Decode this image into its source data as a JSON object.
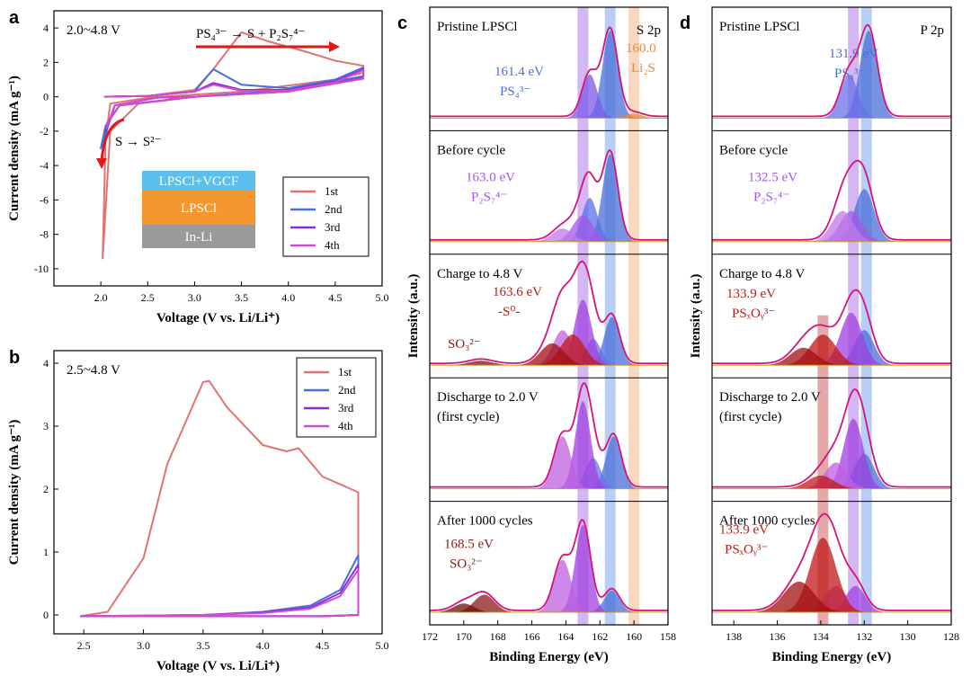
{
  "chart_data": [
    {
      "id": "a",
      "type": "line",
      "panel_label": "a",
      "range_text": "2.0~4.8 V",
      "reaction_top": "PS₄³⁻ → S + P₂S₇⁴⁻",
      "reaction_left": "S → S²⁻",
      "xlabel": "Voltage (V vs. Li/Li⁺)",
      "ylabel": "Current density (mA g⁻¹)",
      "xlim": [
        1.5,
        5.0
      ],
      "ylim": [
        -11,
        5
      ],
      "xticks": [
        "2.0",
        "2.5",
        "3.0",
        "3.5",
        "4.0",
        "4.5",
        "5.0"
      ],
      "yticks": [
        "-10",
        "-8",
        "-6",
        "-4",
        "-2",
        "0",
        "2",
        "4"
      ],
      "stack": [
        "LPSCl+VGCF",
        "LPSCl",
        "In-Li"
      ],
      "series": [
        {
          "name": "1st",
          "color": "#e27272",
          "x": [
            2.03,
            2.5,
            3.0,
            3.2,
            3.5,
            3.8,
            4.2,
            4.5,
            4.8,
            4.8,
            4.5,
            3.5,
            2.5,
            2.1,
            2.05,
            2.02,
            2.1,
            2.4,
            3.0
          ],
          "y": [
            0.0,
            0.05,
            0.4,
            1.6,
            3.75,
            3.2,
            2.6,
            2.1,
            1.8,
            1.4,
            1.0,
            0.3,
            -0.05,
            -0.4,
            -2.5,
            -9.4,
            -2.0,
            -0.4,
            0.0
          ]
        },
        {
          "name": "2nd",
          "color": "#4a6fd8",
          "x": [
            2.05,
            2.5,
            3.0,
            3.2,
            3.5,
            4.0,
            4.5,
            4.8,
            4.8,
            4.0,
            3.0,
            2.2,
            2.05,
            2.0,
            2.15,
            2.6,
            3.0
          ],
          "y": [
            0.0,
            0.05,
            0.3,
            1.6,
            0.7,
            0.5,
            1.0,
            1.7,
            1.2,
            0.4,
            0.0,
            -0.5,
            -1.7,
            -3.0,
            -0.5,
            -0.05,
            0.0
          ]
        },
        {
          "name": "3rd",
          "color": "#8a2be2",
          "x": [
            2.05,
            2.5,
            3.0,
            3.2,
            3.5,
            4.0,
            4.5,
            4.8,
            4.8,
            4.0,
            3.0,
            2.2,
            2.07,
            2.05,
            2.15,
            2.6,
            3.0
          ],
          "y": [
            0.0,
            0.05,
            0.3,
            0.8,
            0.4,
            0.4,
            0.9,
            1.6,
            1.1,
            0.3,
            0.0,
            -0.5,
            -1.5,
            -2.0,
            -0.5,
            -0.05,
            0.0
          ]
        },
        {
          "name": "4th",
          "color": "#d04ad0",
          "x": [
            2.05,
            2.5,
            3.0,
            3.2,
            3.5,
            4.0,
            4.5,
            4.8,
            4.8,
            4.0,
            3.0,
            2.2,
            2.08,
            2.06,
            2.15,
            2.6,
            3.0
          ],
          "y": [
            0.0,
            0.05,
            0.3,
            0.7,
            0.35,
            0.35,
            0.85,
            1.55,
            1.05,
            0.3,
            0.0,
            -0.5,
            -1.4,
            -1.8,
            -0.5,
            -0.05,
            0.0
          ]
        }
      ]
    },
    {
      "id": "b",
      "type": "line",
      "panel_label": "b",
      "range_text": "2.5~4.8 V",
      "xlabel": "Voltage (V vs. Li/Li⁺)",
      "ylabel": "Current density (mA g⁻¹)",
      "xlim": [
        2.25,
        5.0
      ],
      "ylim": [
        -0.3,
        4.2
      ],
      "xticks": [
        "2.5",
        "3.0",
        "3.5",
        "4.0",
        "4.5",
        "5.0"
      ],
      "yticks": [
        "0",
        "1",
        "2",
        "3",
        "4"
      ],
      "series": [
        {
          "name": "1st",
          "color": "#e27272",
          "x": [
            2.47,
            2.7,
            3.0,
            3.2,
            3.5,
            3.55,
            3.7,
            4.0,
            4.2,
            4.3,
            4.5,
            4.8,
            4.8,
            4.5,
            4.0,
            3.5,
            3.0,
            2.5
          ],
          "y": [
            -0.02,
            0.05,
            0.9,
            2.4,
            3.7,
            3.72,
            3.3,
            2.7,
            2.6,
            2.65,
            2.2,
            1.95,
            0.0,
            -0.02,
            -0.02,
            -0.02,
            -0.02,
            -0.02
          ]
        },
        {
          "name": "2nd",
          "color": "#4a6fd8",
          "x": [
            2.47,
            3.0,
            3.5,
            4.0,
            4.4,
            4.65,
            4.8,
            4.8,
            4.5,
            4.0,
            3.0,
            2.5
          ],
          "y": [
            -0.02,
            -0.01,
            0.0,
            0.05,
            0.15,
            0.4,
            0.95,
            0.0,
            -0.02,
            -0.02,
            -0.02,
            -0.02
          ]
        },
        {
          "name": "3rd",
          "color": "#8a2be2",
          "x": [
            2.47,
            3.0,
            3.5,
            4.0,
            4.4,
            4.65,
            4.8,
            4.8,
            4.5,
            4.0,
            3.0,
            2.5
          ],
          "y": [
            -0.02,
            -0.01,
            0.0,
            0.04,
            0.12,
            0.35,
            0.8,
            0.0,
            -0.02,
            -0.02,
            -0.02,
            -0.02
          ]
        },
        {
          "name": "4th",
          "color": "#d04ad0",
          "x": [
            2.47,
            3.0,
            3.5,
            4.0,
            4.4,
            4.65,
            4.8,
            4.8,
            4.5,
            4.0,
            3.0,
            2.5
          ],
          "y": [
            -0.02,
            -0.01,
            0.0,
            0.03,
            0.1,
            0.3,
            0.72,
            0.0,
            -0.02,
            -0.02,
            -0.02,
            -0.02
          ]
        }
      ]
    },
    {
      "id": "c",
      "type": "area",
      "panel_label": "c",
      "element_label": "S 2p",
      "xlabel": "Binding Energy (eV)",
      "ylabel": "Intensity (a.u.)",
      "xlim": [
        172,
        158
      ],
      "xticks": [
        "172",
        "170",
        "168",
        "166",
        "164",
        "162",
        "160",
        "158"
      ],
      "bands": [
        {
          "center": 163.0,
          "color": "#b07ae8"
        },
        {
          "center": 161.4,
          "color": "#7ea6ee"
        },
        {
          "center": 160.0,
          "color": "#f4b88a"
        }
      ],
      "rows": [
        {
          "title": "Pristine LPSCl",
          "annotations": [
            {
              "text": "161.4 eV",
              "sub": "PS₄³⁻",
              "color": "#4a6fd8"
            },
            {
              "text": "160.0",
              "sub": "Li₂S",
              "color": "#e88a3a"
            }
          ],
          "peaks": [
            {
              "c": 161.4,
              "a": 1.0,
              "w": 0.45,
              "color": "#4a6fd8"
            },
            {
              "c": 162.6,
              "a": 0.5,
              "w": 0.45,
              "color": "#7a5ae8"
            },
            {
              "c": 160.0,
              "a": 0.05,
              "w": 0.5,
              "color": "#e88a3a"
            }
          ]
        },
        {
          "title": "Before cycle",
          "annotations": [
            {
              "text": "163.0 eV",
              "sub": "P₂S₇⁴⁻",
              "color": "#a05ae8"
            }
          ],
          "peaks": [
            {
              "c": 161.4,
              "a": 1.0,
              "w": 0.45,
              "color": "#4a6fd8"
            },
            {
              "c": 162.6,
              "a": 0.5,
              "w": 0.45,
              "color": "#5a70e8"
            },
            {
              "c": 163.0,
              "a": 0.3,
              "w": 0.6,
              "color": "#a05ae8"
            },
            {
              "c": 164.2,
              "a": 0.15,
              "w": 0.6,
              "color": "#c07ae8"
            }
          ]
        },
        {
          "title": "Charge to 4.8 V",
          "annotations": [
            {
              "text": "163.6 eV",
              "sub": "-S⁰-",
              "color": "#b02020"
            },
            {
              "text": "SO₃²⁻",
              "sub": "",
              "color": "#8b1a1a"
            }
          ],
          "peaks": [
            {
              "c": 161.3,
              "a": 0.55,
              "w": 0.45,
              "color": "#4a6fd8"
            },
            {
              "c": 162.4,
              "a": 0.3,
              "w": 0.45,
              "color": "#6a70e8"
            },
            {
              "c": 163.0,
              "a": 0.75,
              "w": 0.5,
              "color": "#a040e0"
            },
            {
              "c": 164.2,
              "a": 0.4,
              "w": 0.55,
              "color": "#c060e0"
            },
            {
              "c": 163.6,
              "a": 0.35,
              "w": 0.7,
              "color": "#c01818"
            },
            {
              "c": 164.8,
              "a": 0.25,
              "w": 0.7,
              "color": "#a01010"
            },
            {
              "c": 169.0,
              "a": 0.05,
              "w": 0.7,
              "color": "#7a1010"
            }
          ]
        },
        {
          "title": "Discharge to 2.0 V",
          "title2": "(first cycle)",
          "annotations": [],
          "peaks": [
            {
              "c": 161.2,
              "a": 0.6,
              "w": 0.45,
              "color": "#4a6fd8"
            },
            {
              "c": 162.4,
              "a": 0.35,
              "w": 0.45,
              "color": "#6a70e8"
            },
            {
              "c": 163.0,
              "a": 1.0,
              "w": 0.45,
              "color": "#a040e0"
            },
            {
              "c": 164.2,
              "a": 0.6,
              "w": 0.5,
              "color": "#c060e0"
            }
          ]
        },
        {
          "title": "After 1000 cycles",
          "annotations": [
            {
              "text": "168.5 eV",
              "sub": "SO₃²⁻",
              "color": "#8b1a1a"
            }
          ],
          "peaks": [
            {
              "c": 161.3,
              "a": 0.25,
              "w": 0.45,
              "color": "#4a6fd8"
            },
            {
              "c": 163.0,
              "a": 1.0,
              "w": 0.45,
              "color": "#a040e0"
            },
            {
              "c": 164.2,
              "a": 0.6,
              "w": 0.5,
              "color": "#c060e0"
            },
            {
              "c": 168.8,
              "a": 0.2,
              "w": 0.6,
              "color": "#8b1a1a"
            },
            {
              "c": 170.0,
              "a": 0.1,
              "w": 0.6,
              "color": "#6a1010"
            }
          ]
        }
      ]
    },
    {
      "id": "d",
      "type": "area",
      "panel_label": "d",
      "element_label": "P 2p",
      "xlabel": "Binding Energy (eV)",
      "ylabel": "Intensity (a.u.)",
      "xlim": [
        139,
        128
      ],
      "xticks": [
        "138",
        "136",
        "134",
        "132",
        "130",
        "128"
      ],
      "bands": [
        {
          "center": 132.5,
          "color": "#b07ae8"
        },
        {
          "center": 131.9,
          "color": "#7ea6ee"
        },
        {
          "center": 133.9,
          "color": "#d06060"
        }
      ],
      "rows": [
        {
          "title": "Pristine LPSCl",
          "annotations": [
            {
              "text": "131.9 eV",
              "sub": "PS₄³⁻",
              "color": "#4a6fd8"
            }
          ],
          "peaks": [
            {
              "c": 131.8,
              "a": 1.0,
              "w": 0.4,
              "color": "#4a6fd8"
            },
            {
              "c": 132.7,
              "a": 0.5,
              "w": 0.4,
              "color": "#6a70e8"
            }
          ]
        },
        {
          "title": "Before cycle",
          "annotations": [
            {
              "text": "132.5 eV",
              "sub": "P₂S₇⁴⁻",
              "color": "#a05ae8"
            }
          ],
          "peaks": [
            {
              "c": 132.0,
              "a": 0.6,
              "w": 0.45,
              "color": "#4a6fd8"
            },
            {
              "c": 132.6,
              "a": 0.35,
              "w": 0.5,
              "color": "#a05ae8"
            },
            {
              "c": 133.0,
              "a": 0.35,
              "w": 0.5,
              "color": "#c07ae8"
            }
          ]
        },
        {
          "title": "Charge to 4.8 V",
          "annotations": [
            {
              "text": "133.9 eV",
              "sub": "PSₓOᵧ³⁻",
              "color": "#b02020"
            }
          ],
          "peaks": [
            {
              "c": 132.0,
              "a": 0.4,
              "w": 0.45,
              "color": "#4a6fd8"
            },
            {
              "c": 132.6,
              "a": 0.6,
              "w": 0.5,
              "color": "#a040e0"
            },
            {
              "c": 133.9,
              "a": 0.35,
              "w": 0.6,
              "color": "#c01818"
            },
            {
              "c": 134.8,
              "a": 0.2,
              "w": 0.6,
              "color": "#a01010"
            }
          ]
        },
        {
          "title": "Discharge to 2.0 V",
          "title2": "(first cycle)",
          "annotations": [],
          "peaks": [
            {
              "c": 132.0,
              "a": 0.4,
              "w": 0.45,
              "color": "#4a6fd8"
            },
            {
              "c": 132.5,
              "a": 0.8,
              "w": 0.45,
              "color": "#a040e0"
            },
            {
              "c": 133.3,
              "a": 0.3,
              "w": 0.5,
              "color": "#c060e0"
            },
            {
              "c": 134.0,
              "a": 0.15,
              "w": 0.6,
              "color": "#c01818"
            }
          ]
        },
        {
          "title": "After 1000 cycles",
          "annotations": [
            {
              "text": "133.9 eV",
              "sub": "PSₓOᵧ³⁻",
              "color": "#b02020"
            }
          ],
          "peaks": [
            {
              "c": 132.4,
              "a": 0.3,
              "w": 0.45,
              "color": "#a040e0"
            },
            {
              "c": 133.3,
              "a": 0.3,
              "w": 0.5,
              "color": "#c060e0"
            },
            {
              "c": 133.9,
              "a": 0.85,
              "w": 0.6,
              "color": "#c01818"
            },
            {
              "c": 135.0,
              "a": 0.35,
              "w": 0.7,
              "color": "#a01010"
            }
          ]
        }
      ]
    }
  ]
}
